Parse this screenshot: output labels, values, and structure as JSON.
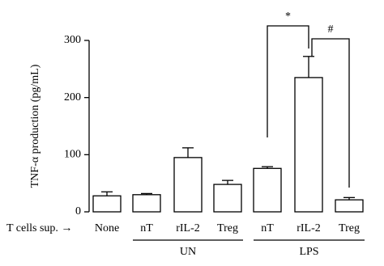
{
  "chart_data": {
    "type": "bar",
    "ylabel": "TNF-α production (pg/mL)",
    "xlabel": "T cells sup. →",
    "categories": [
      "None",
      "nT",
      "rIL-2",
      "Treg",
      "nT",
      "rIL-2",
      "Treg"
    ],
    "values": [
      28,
      30,
      95,
      48,
      76,
      235,
      21
    ],
    "errors": [
      7,
      2,
      17,
      7,
      3,
      37,
      4
    ],
    "groups": [
      "UN",
      "LPS"
    ],
    "annotations": [
      "*",
      "#"
    ],
    "color": "#ffffff",
    "ylim": [
      0,
      300
    ],
    "yticks": [
      0,
      100,
      200,
      300
    ]
  }
}
